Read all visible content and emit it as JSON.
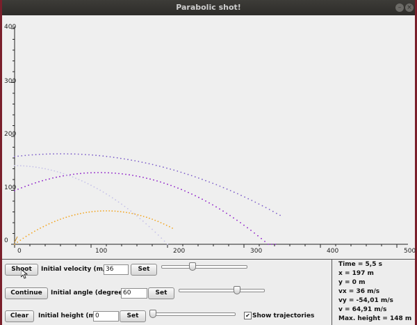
{
  "window": {
    "title": "Parabolic shot!"
  },
  "plot": {
    "y_ticks": [
      "400",
      "300",
      "200",
      "100",
      "0"
    ],
    "x_ticks": [
      "0",
      "100",
      "200",
      "300",
      "400",
      "500"
    ],
    "trajectory_colors": [
      "#7b5cc9",
      "#8a18c8",
      "#c4c0e8",
      "#f2a521",
      "#f2a521"
    ]
  },
  "controls": {
    "shoot_label": "Shoot",
    "continue_label": "Continue",
    "clear_label": "Clear",
    "velocity_label": "Initial velocity (m/s)",
    "velocity_value": "36",
    "angle_label": "Initial angle (degrees)",
    "angle_value": "60",
    "height_label": "Initial height (m)",
    "height_value": "0",
    "set_label": "Set",
    "show_trajectories_label": "Show trajectories",
    "show_trajectories_checked": true
  },
  "info": {
    "time": "Time = 5,5 s",
    "x": "x = 197 m",
    "y": "y = 0 m",
    "vx": "vx = 36 m/s",
    "vy": "vy = -54,01 m/s",
    "v": "v = 64,91 m/s",
    "max_height": "Max. height = 148 m"
  }
}
